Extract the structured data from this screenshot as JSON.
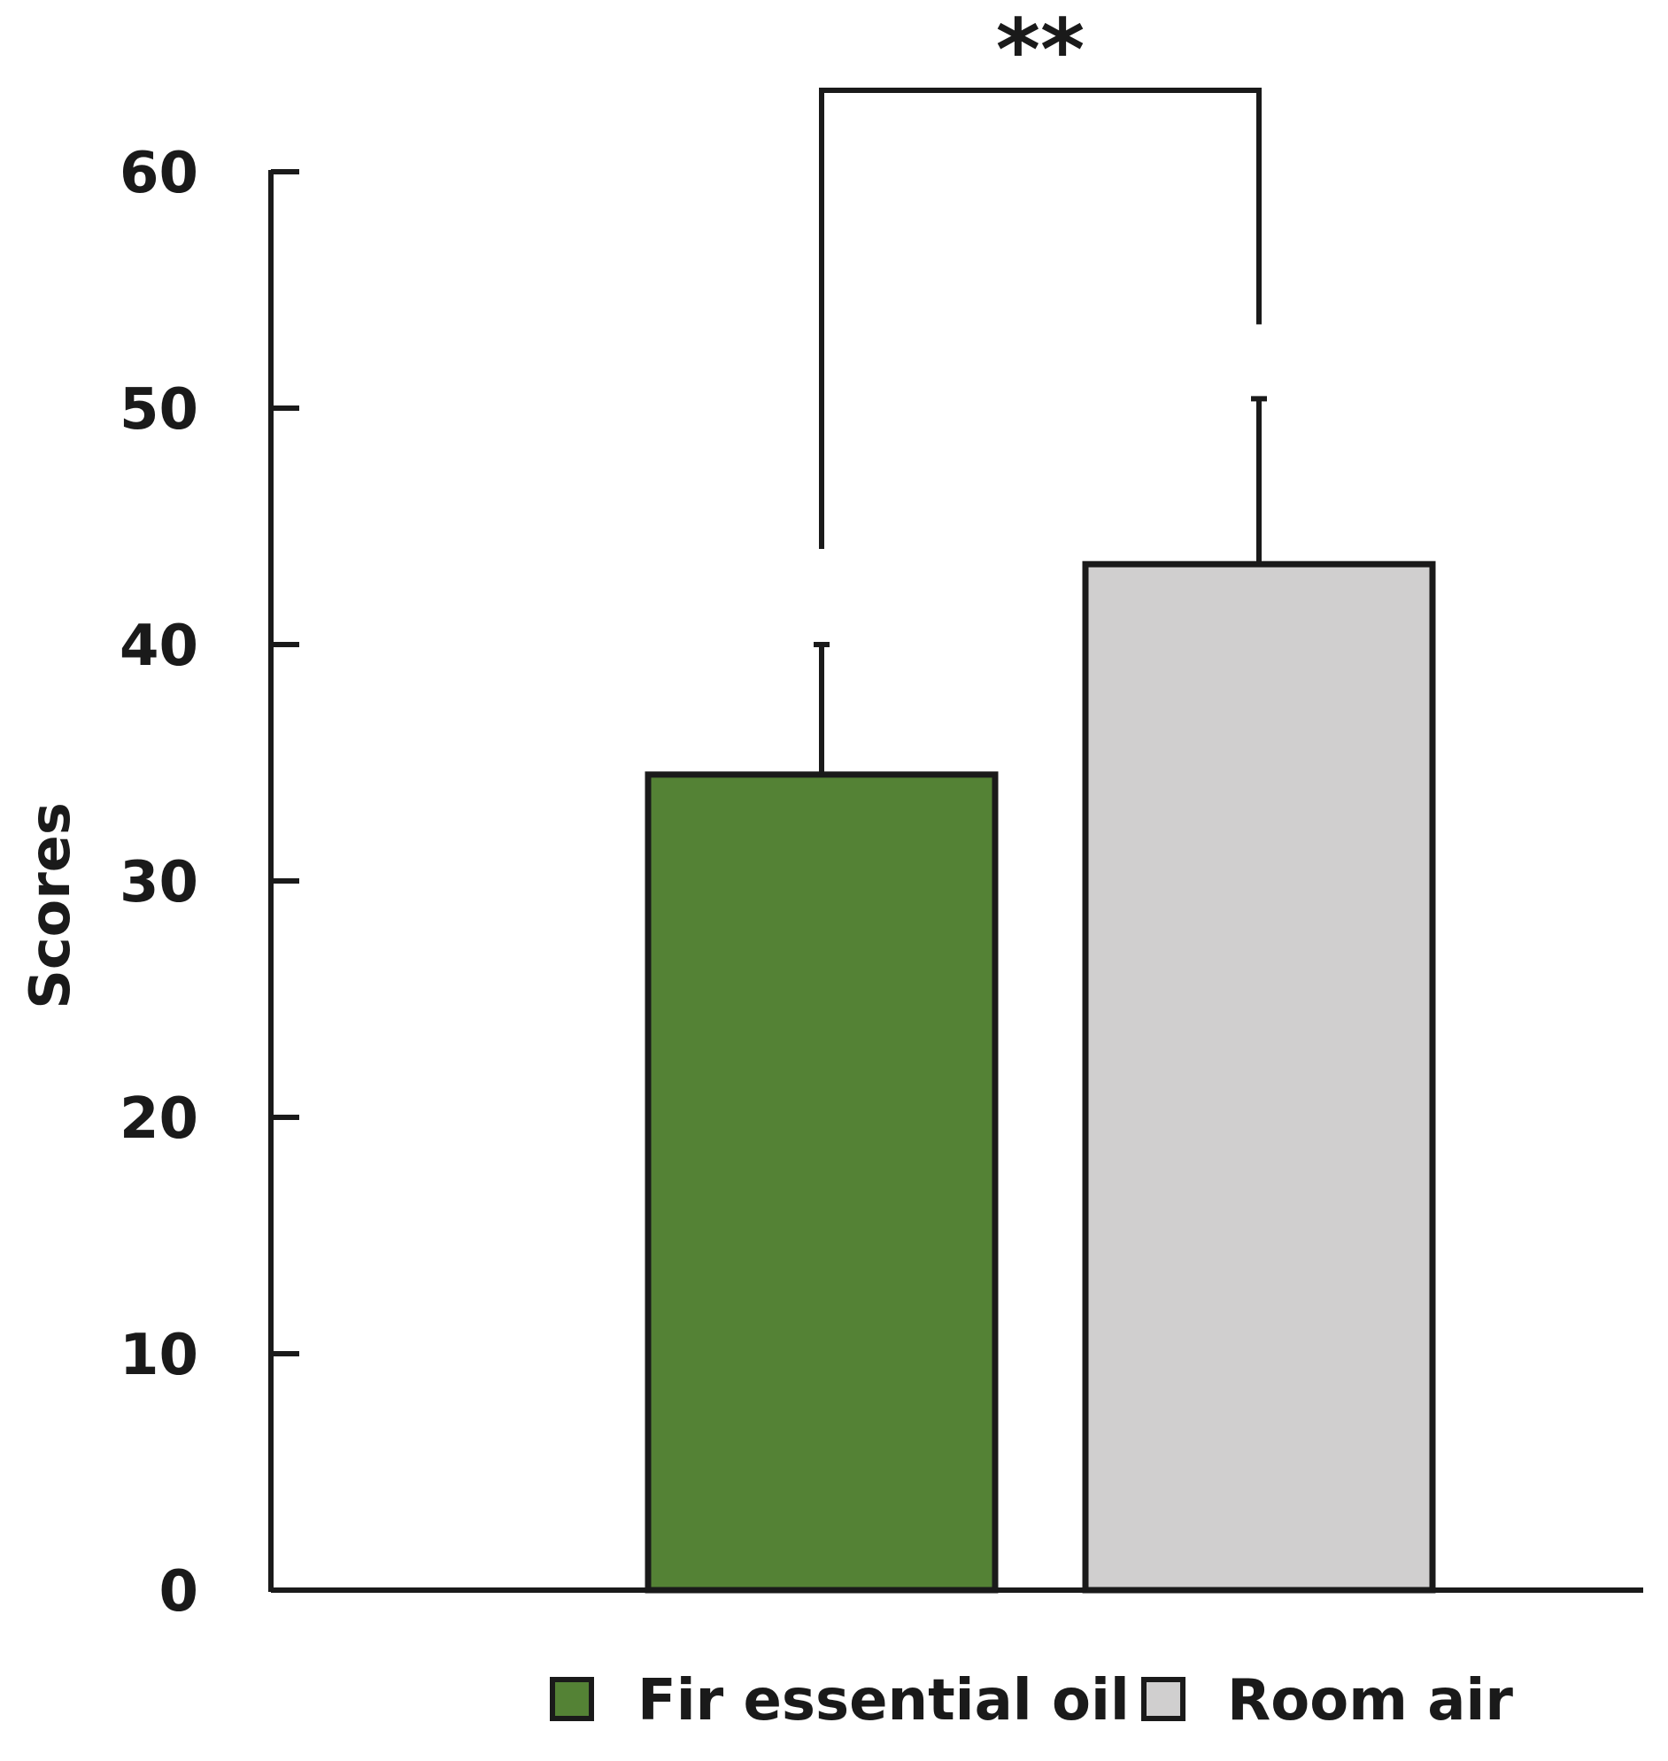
{
  "chart_data": {
    "type": "bar",
    "categories": [
      "Fir essential oil",
      "Room air"
    ],
    "values": [
      34.5,
      43.4
    ],
    "errors": [
      5.5,
      7.0
    ],
    "ylabel": "Scores",
    "xlabel": "",
    "ylim": [
      0,
      60
    ],
    "yticks": [
      0,
      10,
      20,
      30,
      40,
      50,
      60
    ],
    "grid": false,
    "legend_position": "bottom",
    "colors": [
      "#548235",
      "#d0cfcf"
    ],
    "edge_color": "#1a1a1a",
    "significance": {
      "label": "**",
      "between": [
        0,
        1
      ]
    }
  }
}
